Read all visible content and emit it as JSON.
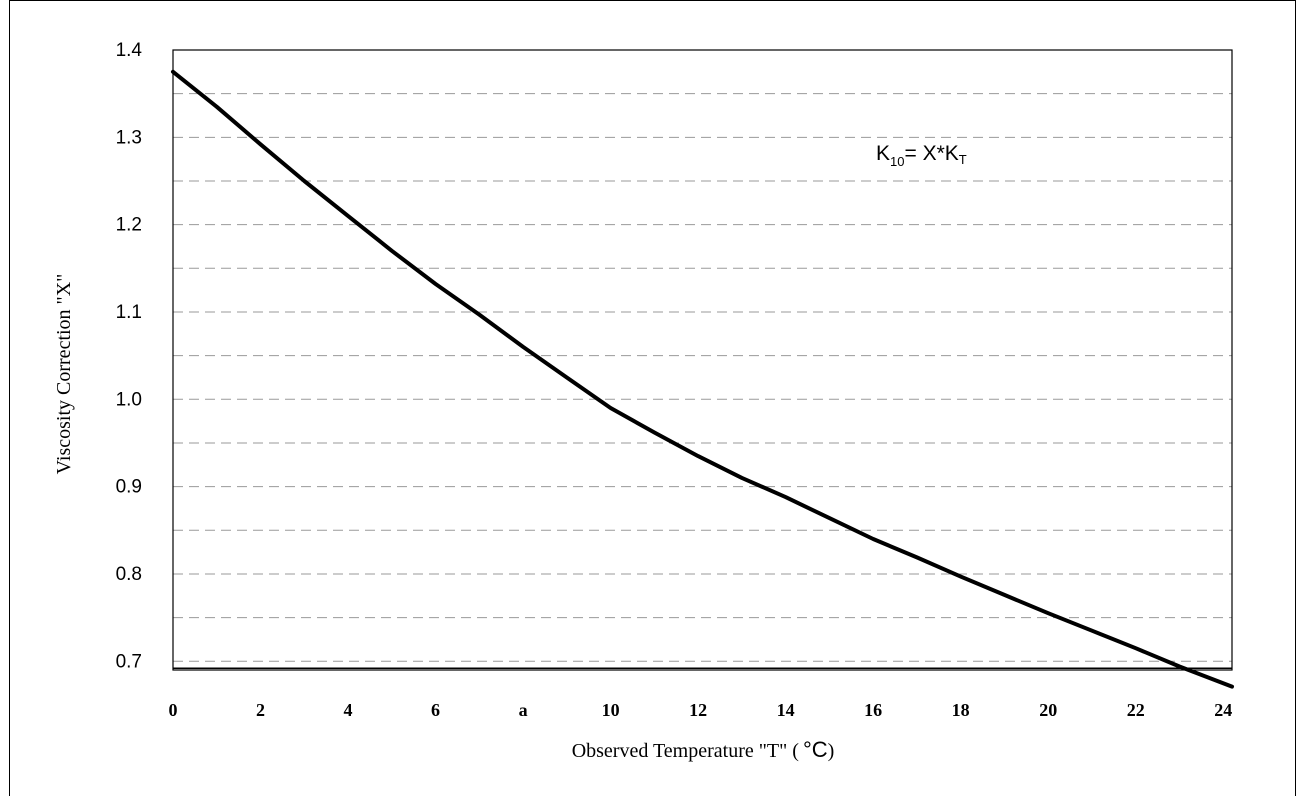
{
  "chart_data": {
    "type": "line",
    "xlabel": "Observed Temperature \"T\" (",
    "xlabel_unit": "°C",
    "xlabel_close": ")",
    "ylabel": "Viscosity Correction \"X\"",
    "x_tick_labels": [
      "0",
      "2",
      "4",
      "6",
      "a",
      "10",
      "12",
      "14",
      "16",
      "18",
      "20",
      "22",
      "24"
    ],
    "x_tick_values": [
      0,
      2,
      4,
      6,
      8,
      10,
      12,
      14,
      16,
      18,
      20,
      22,
      24
    ],
    "y_tick_labels": [
      "1.4",
      "1.3",
      "1.2",
      "1.1",
      "1.0",
      "0.9",
      "0.8",
      "0.7"
    ],
    "y_tick_values": [
      1.4,
      1.3,
      1.2,
      1.1,
      1.0,
      0.9,
      0.8,
      0.7
    ],
    "xlim": [
      0,
      24.2
    ],
    "ylim": [
      0.69,
      1.4
    ],
    "grid": "dashed horizontal",
    "annotation": {
      "main": "K",
      "sub1": "10",
      "mid": "= X*K",
      "sub2": "T"
    },
    "series": [
      {
        "x": [
          0,
          1,
          2,
          3,
          4,
          5,
          6,
          7,
          8,
          9,
          10,
          11,
          12,
          13,
          14,
          15,
          16,
          17,
          18,
          19,
          20,
          21,
          22,
          23,
          24.2
        ],
        "y": [
          1.375,
          1.335,
          1.292,
          1.25,
          1.21,
          1.17,
          1.132,
          1.097,
          1.06,
          1.025,
          0.99,
          0.962,
          0.935,
          0.91,
          0.888,
          0.864,
          0.84,
          0.819,
          0.797,
          0.776,
          0.755,
          0.735,
          0.715,
          0.694,
          0.671
        ]
      }
    ]
  }
}
